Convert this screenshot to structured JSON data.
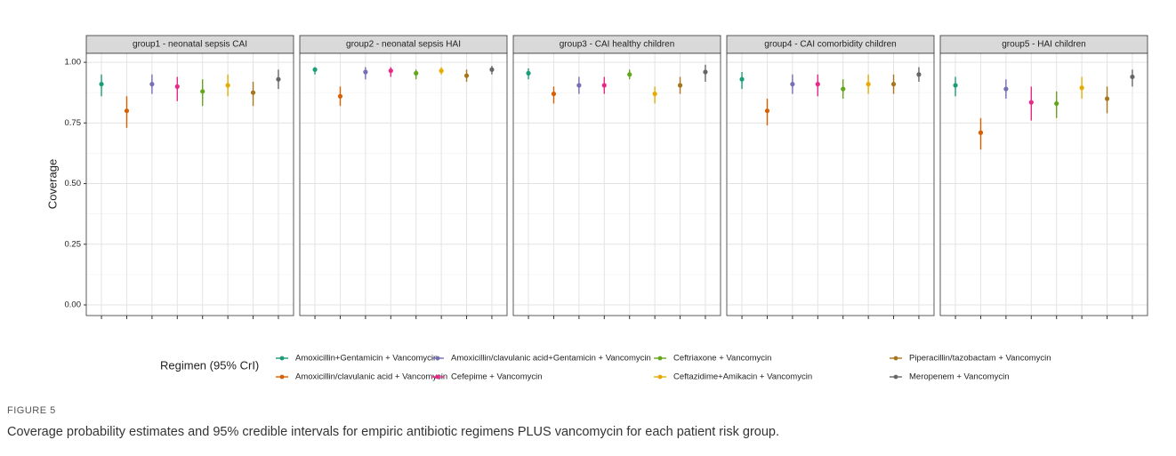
{
  "ylabel": "Coverage",
  "legend": {
    "title": "Regimen (95% CrI)",
    "names": [
      "Amoxicillin+Gentamicin + Vancomycin",
      "Amoxicillin/clavulanic acid + Vancomycin",
      "Amoxicillin/clavulanic acid+Gentamicin + Vancomycin",
      "Cefepime + Vancomycin",
      "Ceftriaxone + Vancomycin",
      "Ceftazidime+Amikacin + Vancomycin",
      "Piperacillin/tazobactam + Vancomycin",
      "Meropenem + Vancomycin"
    ],
    "colors": [
      "#1b9e77",
      "#d95f02",
      "#7570b3",
      "#e7298a",
      "#66a61e",
      "#e6ab02",
      "#a6761d",
      "#666666"
    ]
  },
  "chart_data": [
    {
      "type": "pointrange",
      "title": "group1 - neonatal sepsis CAI",
      "values": [
        0.91,
        0.8,
        0.91,
        0.9,
        0.88,
        0.905,
        0.875,
        0.93
      ],
      "lower": [
        0.86,
        0.73,
        0.87,
        0.84,
        0.82,
        0.86,
        0.82,
        0.89
      ],
      "upper": [
        0.95,
        0.86,
        0.95,
        0.94,
        0.93,
        0.95,
        0.92,
        0.97
      ],
      "ylim": [
        -0.044,
        1.037
      ],
      "grid": true,
      "yticks": [
        {
          "value": 0,
          "label": "0.00"
        },
        {
          "value": 0.25,
          "label": "0.25"
        },
        {
          "value": 0.5,
          "label": "0.50"
        },
        {
          "value": 0.75,
          "label": "0.75"
        },
        {
          "value": 1,
          "label": "1.00"
        }
      ]
    },
    {
      "type": "pointrange",
      "title": "group2 - neonatal sepsis HAI",
      "values": [
        0.97,
        0.86,
        0.96,
        0.965,
        0.955,
        0.965,
        0.945,
        0.97
      ],
      "lower": [
        0.95,
        0.82,
        0.93,
        0.94,
        0.93,
        0.95,
        0.92,
        0.95
      ],
      "upper": [
        0.98,
        0.9,
        0.98,
        0.98,
        0.97,
        0.98,
        0.97,
        0.985
      ],
      "ylim": [
        -0.044,
        1.037
      ],
      "grid": true,
      "yticks": [
        0,
        0.25,
        0.5,
        0.75,
        1
      ]
    },
    {
      "type": "pointrange",
      "title": "group3 - CAI healthy children",
      "values": [
        0.955,
        0.87,
        0.905,
        0.905,
        0.95,
        0.87,
        0.905,
        0.96
      ],
      "lower": [
        0.93,
        0.83,
        0.87,
        0.87,
        0.93,
        0.83,
        0.87,
        0.92
      ],
      "upper": [
        0.975,
        0.9,
        0.94,
        0.94,
        0.97,
        0.9,
        0.94,
        0.99
      ],
      "ylim": [
        -0.044,
        1.037
      ],
      "grid": true,
      "yticks": [
        0,
        0.25,
        0.5,
        0.75,
        1
      ]
    },
    {
      "type": "pointrange",
      "title": "group4 - CAI comorbidity children",
      "values": [
        0.93,
        0.8,
        0.91,
        0.91,
        0.89,
        0.91,
        0.91,
        0.95
      ],
      "lower": [
        0.89,
        0.74,
        0.87,
        0.86,
        0.85,
        0.87,
        0.87,
        0.92
      ],
      "upper": [
        0.96,
        0.85,
        0.95,
        0.95,
        0.93,
        0.95,
        0.95,
        0.98
      ],
      "ylim": [
        -0.044,
        1.037
      ],
      "grid": true,
      "yticks": [
        0,
        0.25,
        0.5,
        0.75,
        1
      ]
    },
    {
      "type": "pointrange",
      "title": "group5 - HAI children",
      "values": [
        0.905,
        0.71,
        0.89,
        0.835,
        0.83,
        0.895,
        0.85,
        0.94
      ],
      "lower": [
        0.86,
        0.64,
        0.85,
        0.76,
        0.77,
        0.85,
        0.79,
        0.9
      ],
      "upper": [
        0.94,
        0.77,
        0.93,
        0.9,
        0.88,
        0.94,
        0.9,
        0.97
      ],
      "ylim": [
        -0.044,
        1.037
      ],
      "grid": true,
      "yticks": [
        0,
        0.25,
        0.5,
        0.75,
        1
      ]
    }
  ],
  "figure_label": "FIGURE 5",
  "caption": "Coverage probability estimates and 95% credible intervals for empiric antibiotic regimens PLUS vancomycin for each patient risk group."
}
